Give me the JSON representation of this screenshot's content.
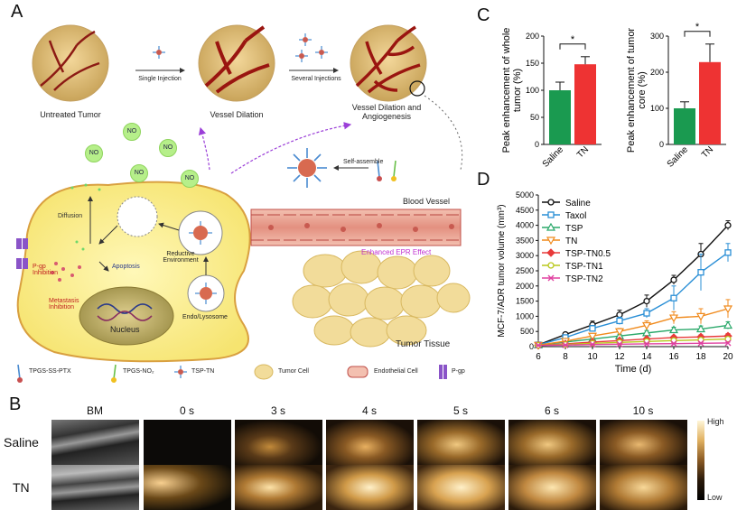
{
  "panel_labels": {
    "a": "A",
    "b": "B",
    "c": "C",
    "d": "D"
  },
  "panel_a": {
    "stages": [
      {
        "label": "Untreated Tumor"
      },
      {
        "label": "Vessel Dilation"
      },
      {
        "label": "Vessel Dilation and Angiogenesis"
      }
    ],
    "arrows": [
      "Single Injection",
      "Several Injections"
    ],
    "no_label": "NO",
    "self_assemble": "Self-assemble",
    "blood_vessel": "Blood Vessel",
    "epr": "Enhanced EPR Effect",
    "tumor_tissue": "Tumor Tissue",
    "cell_labels": {
      "diffusion": "Diffusion",
      "apoptosis": "Apoptosis",
      "reductive": "Reductive Environment",
      "pgp_inhibition": "P-gp Inhibition",
      "metastasis": "Metastasis Inhibition",
      "nucleus": "Nucleus",
      "endo": "Endo/Lysosome"
    },
    "legend": [
      "TPGS-SS-PTX",
      "TPGS-NO₂",
      "TSP-TN",
      "Tumor Cell",
      "Endothelial Cell",
      "P-gp"
    ]
  },
  "panel_b": {
    "columns": [
      "BM",
      "0 s",
      "3 s",
      "4 s",
      "5 s",
      "6 s",
      "10 s"
    ],
    "rows": [
      "Saline",
      "TN"
    ],
    "scale_high": "High",
    "scale_low": "Low"
  },
  "chart_data": [
    {
      "type": "bar",
      "ylabel": "Peak enhancement of whole tumor (%)",
      "categories": [
        "Saline",
        "TN"
      ],
      "values": [
        100,
        148
      ],
      "errors": [
        15,
        14
      ],
      "ylim": [
        0,
        200
      ],
      "yticks": [
        0,
        50,
        100,
        150,
        200
      ],
      "significance": "*",
      "colors": [
        "#1a9a50",
        "#ee3333"
      ]
    },
    {
      "type": "bar",
      "ylabel": "Peak enhancement of tumor core (%)",
      "categories": [
        "Saline",
        "TN"
      ],
      "values": [
        100,
        228
      ],
      "errors": [
        18,
        50
      ],
      "ylim": [
        0,
        300
      ],
      "yticks": [
        0,
        100,
        200,
        300
      ],
      "significance": "*",
      "colors": [
        "#1a9a50",
        "#ee3333"
      ]
    },
    {
      "type": "line",
      "xlabel": "Time (d)",
      "ylabel": "MCF-7/ADR tumor volume (mm³)",
      "x": [
        6,
        8,
        10,
        12,
        14,
        16,
        18,
        20
      ],
      "xticks": [
        6,
        8,
        10,
        12,
        14,
        16,
        18,
        20
      ],
      "yticks": [
        0,
        500,
        1000,
        1500,
        2000,
        2500,
        3000,
        3500,
        4000,
        4500,
        5000
      ],
      "xlim": [
        6,
        20
      ],
      "ylim": [
        0,
        5000
      ],
      "legend_position": "top-left",
      "series": [
        {
          "name": "Saline",
          "color": "#111111",
          "marker": "circle",
          "values": [
            60,
            400,
            720,
            1050,
            1500,
            2200,
            3050,
            4000
          ],
          "err": [
            20,
            60,
            120,
            150,
            200,
            150,
            350,
            150
          ]
        },
        {
          "name": "Taxol",
          "color": "#2a8fd6",
          "marker": "square",
          "values": [
            60,
            300,
            600,
            850,
            1100,
            1600,
            2450,
            3100
          ],
          "err": [
            20,
            50,
            100,
            120,
            150,
            400,
            600,
            300
          ]
        },
        {
          "name": "TSP",
          "color": "#2aa86a",
          "marker": "triangle-up",
          "values": [
            50,
            150,
            250,
            350,
            450,
            550,
            580,
            700
          ],
          "err": [
            10,
            30,
            50,
            60,
            80,
            90,
            100,
            120
          ]
        },
        {
          "name": "TN",
          "color": "#f08a1c",
          "marker": "triangle-down",
          "values": [
            50,
            180,
            350,
            500,
            700,
            950,
            1000,
            1250
          ],
          "err": [
            10,
            40,
            80,
            100,
            150,
            200,
            250,
            300
          ]
        },
        {
          "name": "TSP-TN0.5",
          "color": "#e83a3a",
          "marker": "diamond",
          "values": [
            40,
            90,
            150,
            200,
            250,
            300,
            320,
            350
          ],
          "err": [
            10,
            20,
            30,
            40,
            50,
            60,
            70,
            80
          ]
        },
        {
          "name": "TSP-TN1",
          "color": "#b9c81c",
          "marker": "circle",
          "values": [
            40,
            70,
            110,
            140,
            170,
            200,
            220,
            250
          ],
          "err": [
            10,
            15,
            20,
            30,
            35,
            40,
            45,
            50
          ]
        },
        {
          "name": "TSP-TN2",
          "color": "#e040a0",
          "marker": "cross",
          "values": [
            40,
            50,
            70,
            80,
            90,
            100,
            110,
            120
          ],
          "err": [
            5,
            10,
            15,
            15,
            20,
            20,
            25,
            25
          ]
        }
      ]
    }
  ]
}
